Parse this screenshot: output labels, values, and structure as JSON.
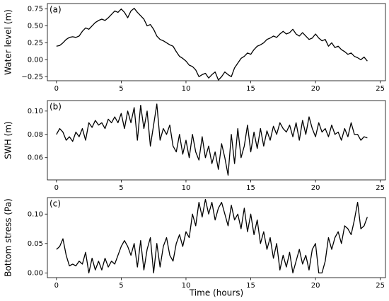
{
  "chart_data": [
    {
      "type": "line",
      "panel_label": "(a)",
      "ylabel": "Water level (m)",
      "color": "#000000",
      "x": [
        0,
        0.25,
        0.5,
        0.75,
        1,
        1.25,
        1.5,
        1.75,
        2,
        2.25,
        2.5,
        2.75,
        3,
        3.25,
        3.5,
        3.75,
        4,
        4.25,
        4.5,
        4.75,
        5,
        5.25,
        5.5,
        5.75,
        6,
        6.25,
        6.5,
        6.75,
        7,
        7.25,
        7.5,
        7.75,
        8,
        8.25,
        8.5,
        8.75,
        9,
        9.25,
        9.5,
        9.75,
        10,
        10.25,
        10.5,
        10.75,
        11,
        11.25,
        11.5,
        11.75,
        12,
        12.25,
        12.5,
        12.75,
        13,
        13.25,
        13.5,
        13.75,
        14,
        14.25,
        14.5,
        14.75,
        15,
        15.25,
        15.5,
        15.75,
        16,
        16.25,
        16.5,
        16.75,
        17,
        17.25,
        17.5,
        17.75,
        18,
        18.25,
        18.5,
        18.75,
        19,
        19.25,
        19.5,
        19.75,
        20,
        20.25,
        20.5,
        20.75,
        21,
        21.25,
        21.5,
        21.75,
        22,
        22.25,
        22.5,
        22.75,
        23,
        23.25,
        23.5,
        23.75,
        24
      ],
      "values": [
        0.2,
        0.21,
        0.25,
        0.3,
        0.33,
        0.34,
        0.33,
        0.35,
        0.42,
        0.47,
        0.45,
        0.5,
        0.55,
        0.58,
        0.6,
        0.58,
        0.62,
        0.67,
        0.72,
        0.7,
        0.75,
        0.7,
        0.62,
        0.72,
        0.76,
        0.7,
        0.65,
        0.6,
        0.5,
        0.52,
        0.45,
        0.35,
        0.3,
        0.28,
        0.25,
        0.22,
        0.2,
        0.12,
        0.05,
        0.02,
        -0.02,
        -0.08,
        -0.1,
        -0.15,
        -0.25,
        -0.22,
        -0.2,
        -0.27,
        -0.22,
        -0.18,
        -0.3,
        -0.25,
        -0.18,
        -0.22,
        -0.25,
        -0.12,
        -0.05,
        0.02,
        0.05,
        0.1,
        0.08,
        0.15,
        0.2,
        0.22,
        0.25,
        0.3,
        0.32,
        0.35,
        0.33,
        0.38,
        0.42,
        0.38,
        0.4,
        0.45,
        0.38,
        0.35,
        0.4,
        0.35,
        0.3,
        0.32,
        0.38,
        0.32,
        0.28,
        0.3,
        0.2,
        0.25,
        0.18,
        0.2,
        0.15,
        0.12,
        0.08,
        0.1,
        0.05,
        0.03,
        0.0,
        0.04,
        -0.02
      ],
      "xlim": [
        -0.7,
        25.4
      ],
      "xticks": [
        0,
        5,
        10,
        15,
        20,
        25
      ],
      "ylim": [
        -0.31,
        0.83
      ],
      "yticks": [
        {
          "value": -0.25,
          "label": "−0.25"
        },
        {
          "value": 0,
          "label": "0.00"
        },
        0.25,
        {
          "value": 0.5,
          "label": "0.50"
        },
        0.75
      ]
    },
    {
      "type": "line",
      "panel_label": "(b)",
      "ylabel": "SWH (m)",
      "color": "#000000",
      "x": [
        0,
        0.25,
        0.5,
        0.75,
        1,
        1.25,
        1.5,
        1.75,
        2,
        2.25,
        2.5,
        2.75,
        3,
        3.25,
        3.5,
        3.75,
        4,
        4.25,
        4.5,
        4.75,
        5,
        5.25,
        5.5,
        5.75,
        6,
        6.25,
        6.5,
        6.75,
        7,
        7.25,
        7.5,
        7.75,
        8,
        8.25,
        8.5,
        8.75,
        9,
        9.25,
        9.5,
        9.75,
        10,
        10.25,
        10.5,
        10.75,
        11,
        11.25,
        11.5,
        11.75,
        12,
        12.25,
        12.5,
        12.75,
        13,
        13.25,
        13.5,
        13.75,
        14,
        14.25,
        14.5,
        14.75,
        15,
        15.25,
        15.5,
        15.75,
        16,
        16.25,
        16.5,
        16.75,
        17,
        17.25,
        17.5,
        17.75,
        18,
        18.25,
        18.5,
        18.75,
        19,
        19.25,
        19.5,
        19.75,
        20,
        20.25,
        20.5,
        20.75,
        21,
        21.25,
        21.5,
        21.75,
        22,
        22.25,
        22.5,
        22.75,
        23,
        23.25,
        23.5,
        23.75,
        24
      ],
      "values": [
        0.08,
        0.085,
        0.082,
        0.075,
        0.078,
        0.074,
        0.082,
        0.078,
        0.085,
        0.075,
        0.09,
        0.086,
        0.092,
        0.088,
        0.09,
        0.085,
        0.093,
        0.09,
        0.095,
        0.09,
        0.098,
        0.085,
        0.1,
        0.09,
        0.103,
        0.075,
        0.105,
        0.085,
        0.1,
        0.07,
        0.088,
        0.106,
        0.075,
        0.085,
        0.08,
        0.088,
        0.07,
        0.065,
        0.08,
        0.063,
        0.075,
        0.06,
        0.08,
        0.065,
        0.058,
        0.078,
        0.06,
        0.07,
        0.055,
        0.065,
        0.05,
        0.072,
        0.06,
        0.045,
        0.08,
        0.055,
        0.085,
        0.06,
        0.07,
        0.088,
        0.065,
        0.082,
        0.068,
        0.085,
        0.07,
        0.083,
        0.075,
        0.087,
        0.08,
        0.09,
        0.085,
        0.082,
        0.088,
        0.078,
        0.09,
        0.075,
        0.092,
        0.08,
        0.095,
        0.085,
        0.078,
        0.09,
        0.082,
        0.085,
        0.078,
        0.088,
        0.08,
        0.082,
        0.075,
        0.085,
        0.078,
        0.09,
        0.08,
        0.08,
        0.075,
        0.078,
        0.077
      ],
      "xlim": [
        -0.7,
        25.4
      ],
      "xticks": [
        0,
        5,
        10,
        15,
        20,
        25
      ],
      "ylim": [
        0.041,
        0.109
      ],
      "yticks": [
        0.06,
        0.08,
        {
          "value": 0.1,
          "label": "0.10"
        }
      ]
    },
    {
      "type": "line",
      "panel_label": "(c)",
      "ylabel": "Bottom stress (Pa)",
      "xlabel": "Time (hours)",
      "color": "#000000",
      "x": [
        0,
        0.25,
        0.5,
        0.75,
        1,
        1.25,
        1.5,
        1.75,
        2,
        2.25,
        2.5,
        2.75,
        3,
        3.25,
        3.5,
        3.75,
        4,
        4.25,
        4.5,
        4.75,
        5,
        5.25,
        5.5,
        5.75,
        6,
        6.25,
        6.5,
        6.75,
        7,
        7.25,
        7.5,
        7.75,
        8,
        8.25,
        8.5,
        8.75,
        9,
        9.25,
        9.5,
        9.75,
        10,
        10.25,
        10.5,
        10.75,
        11,
        11.25,
        11.5,
        11.75,
        12,
        12.25,
        12.5,
        12.75,
        13,
        13.25,
        13.5,
        13.75,
        14,
        14.25,
        14.5,
        14.75,
        15,
        15.25,
        15.5,
        15.75,
        16,
        16.25,
        16.5,
        16.75,
        17,
        17.25,
        17.5,
        17.75,
        18,
        18.25,
        18.5,
        18.75,
        19,
        19.25,
        19.5,
        19.75,
        20,
        20.25,
        20.5,
        20.75,
        21,
        21.25,
        21.5,
        21.75,
        22,
        22.25,
        22.5,
        22.75,
        23,
        23.25,
        23.5,
        23.75,
        24
      ],
      "values": [
        0.04,
        0.045,
        0.058,
        0.03,
        0.012,
        0.015,
        0.012,
        0.02,
        0.015,
        0.035,
        0.0,
        0.025,
        0.005,
        0.02,
        0.005,
        0.025,
        0.01,
        0.02,
        0.015,
        0.03,
        0.045,
        0.055,
        0.045,
        0.03,
        0.05,
        0.01,
        0.055,
        0.005,
        0.04,
        0.06,
        0.0,
        0.05,
        0.01,
        0.045,
        0.06,
        0.03,
        0.02,
        0.05,
        0.065,
        0.045,
        0.07,
        0.06,
        0.1,
        0.08,
        0.12,
        0.095,
        0.125,
        0.1,
        0.12,
        0.09,
        0.11,
        0.12,
        0.1,
        0.08,
        0.115,
        0.09,
        0.1,
        0.075,
        0.11,
        0.07,
        0.1,
        0.065,
        0.09,
        0.05,
        0.07,
        0.04,
        0.06,
        0.025,
        0.05,
        0.005,
        0.03,
        0.01,
        0.035,
        0.0,
        0.02,
        0.04,
        0.015,
        0.03,
        0.005,
        0.04,
        0.05,
        0.0,
        0.0,
        0.02,
        0.06,
        0.04,
        0.06,
        0.07,
        0.05,
        0.08,
        0.075,
        0.065,
        0.09,
        0.12,
        0.075,
        0.08,
        0.095
      ],
      "xlim": [
        -0.7,
        25.4
      ],
      "xticks": [
        0,
        5,
        10,
        15,
        20,
        25
      ],
      "ylim": [
        -0.008,
        0.128
      ],
      "yticks": [
        {
          "value": 0,
          "label": "0.00"
        },
        {
          "value": 0.05,
          "label": "0.05"
        },
        {
          "value": 0.1,
          "label": "0.10"
        }
      ]
    }
  ]
}
